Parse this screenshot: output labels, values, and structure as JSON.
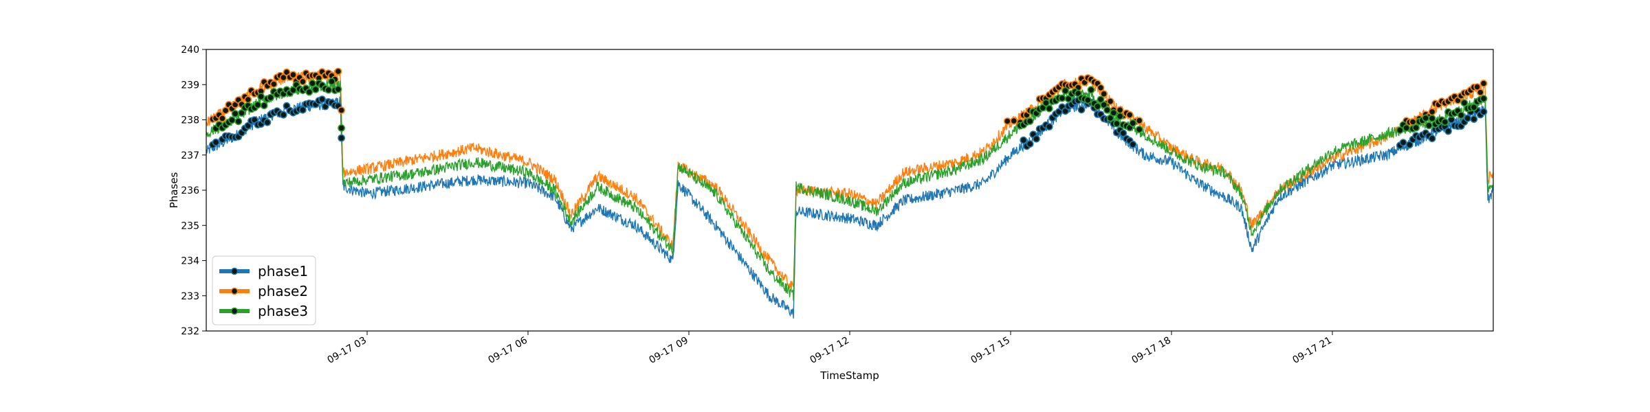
{
  "chart_data": {
    "type": "line",
    "title": "",
    "xlabel": "TimeStamp",
    "ylabel": "Phases",
    "x_range": [
      "09-17 00:00",
      "24:00"
    ],
    "ylim": [
      232,
      240
    ],
    "yticks": [
      232,
      233,
      234,
      235,
      236,
      237,
      238,
      239,
      240
    ],
    "xticks": [
      {
        "hour": 3,
        "label": "09-17 03"
      },
      {
        "hour": 6,
        "label": "09-17 06"
      },
      {
        "hour": 9,
        "label": "09-17 09"
      },
      {
        "hour": 12,
        "label": "09-17 12"
      },
      {
        "hour": 15,
        "label": "09-17 15"
      },
      {
        "hour": 18,
        "label": "09-17 18"
      },
      {
        "hour": 21,
        "label": "09-17 21"
      }
    ],
    "grid": false,
    "legend_position": "lower-left",
    "legend_marker": "filled black circle on line; scatter points drawn where value exceeds series mean",
    "x_unit": "hour",
    "series": [
      {
        "name": "phase1",
        "color": "#1f77b4",
        "points": [
          [
            0.0,
            237.1
          ],
          [
            0.5,
            237.5
          ],
          [
            1.0,
            238.0
          ],
          [
            1.5,
            238.3
          ],
          [
            2.0,
            238.4
          ],
          [
            2.5,
            238.5
          ],
          [
            2.55,
            236.1
          ],
          [
            3.0,
            235.9
          ],
          [
            4.0,
            236.1
          ],
          [
            5.0,
            236.3
          ],
          [
            6.0,
            236.2
          ],
          [
            6.5,
            235.8
          ],
          [
            6.8,
            234.9
          ],
          [
            7.3,
            235.5
          ],
          [
            8.0,
            235.0
          ],
          [
            8.7,
            234.0
          ],
          [
            8.8,
            236.2
          ],
          [
            9.5,
            235.0
          ],
          [
            10.5,
            233.0
          ],
          [
            10.95,
            232.5
          ],
          [
            11.0,
            235.4
          ],
          [
            12.0,
            235.2
          ],
          [
            12.5,
            235.0
          ],
          [
            13.0,
            235.7
          ],
          [
            14.0,
            236.0
          ],
          [
            14.5,
            236.2
          ],
          [
            15.0,
            237.0
          ],
          [
            15.5,
            237.6
          ],
          [
            16.0,
            238.3
          ],
          [
            16.5,
            238.5
          ],
          [
            17.0,
            237.6
          ],
          [
            17.5,
            237.0
          ],
          [
            18.0,
            236.8
          ],
          [
            18.5,
            236.2
          ],
          [
            19.0,
            235.8
          ],
          [
            19.3,
            235.5
          ],
          [
            19.5,
            234.3
          ],
          [
            20.0,
            235.8
          ],
          [
            21.0,
            236.7
          ],
          [
            22.0,
            237.0
          ],
          [
            23.0,
            237.7
          ],
          [
            23.85,
            238.3
          ],
          [
            23.9,
            235.7
          ],
          [
            24.0,
            236.0
          ]
        ]
      },
      {
        "name": "phase2",
        "color": "#ff7f0e",
        "points": [
          [
            0.0,
            237.9
          ],
          [
            0.5,
            238.4
          ],
          [
            1.0,
            238.9
          ],
          [
            1.5,
            239.2
          ],
          [
            2.0,
            239.2
          ],
          [
            2.5,
            239.3
          ],
          [
            2.55,
            236.5
          ],
          [
            3.0,
            236.6
          ],
          [
            4.0,
            236.9
          ],
          [
            5.0,
            237.2
          ],
          [
            6.0,
            236.8
          ],
          [
            6.5,
            236.3
          ],
          [
            6.8,
            235.3
          ],
          [
            7.3,
            236.4
          ],
          [
            8.0,
            235.8
          ],
          [
            8.7,
            234.4
          ],
          [
            8.8,
            236.7
          ],
          [
            9.5,
            236.1
          ],
          [
            10.5,
            234.0
          ],
          [
            10.95,
            233.2
          ],
          [
            11.0,
            236.0
          ],
          [
            12.0,
            235.9
          ],
          [
            12.5,
            235.6
          ],
          [
            13.0,
            236.5
          ],
          [
            14.0,
            236.8
          ],
          [
            14.5,
            237.1
          ],
          [
            15.0,
            237.9
          ],
          [
            15.5,
            238.4
          ],
          [
            16.0,
            239.0
          ],
          [
            16.5,
            239.1
          ],
          [
            17.0,
            238.3
          ],
          [
            17.5,
            237.8
          ],
          [
            18.0,
            237.2
          ],
          [
            18.5,
            236.8
          ],
          [
            19.0,
            236.6
          ],
          [
            19.3,
            236.0
          ],
          [
            19.5,
            235.0
          ],
          [
            20.0,
            236.0
          ],
          [
            21.0,
            236.9
          ],
          [
            22.0,
            237.5
          ],
          [
            23.0,
            238.4
          ],
          [
            23.85,
            238.9
          ],
          [
            23.9,
            236.3
          ],
          [
            24.0,
            236.5
          ]
        ]
      },
      {
        "name": "phase3",
        "color": "#2ca02c",
        "points": [
          [
            0.0,
            237.6
          ],
          [
            0.5,
            238.0
          ],
          [
            1.0,
            238.5
          ],
          [
            1.5,
            238.8
          ],
          [
            2.0,
            238.9
          ],
          [
            2.5,
            239.0
          ],
          [
            2.55,
            236.2
          ],
          [
            3.0,
            236.3
          ],
          [
            4.0,
            236.5
          ],
          [
            5.0,
            236.8
          ],
          [
            6.0,
            236.5
          ],
          [
            6.5,
            236.0
          ],
          [
            6.8,
            235.1
          ],
          [
            7.3,
            236.1
          ],
          [
            8.0,
            235.5
          ],
          [
            8.7,
            234.3
          ],
          [
            8.8,
            236.7
          ],
          [
            9.5,
            235.9
          ],
          [
            10.5,
            233.7
          ],
          [
            10.95,
            233.0
          ],
          [
            11.0,
            236.1
          ],
          [
            12.0,
            235.7
          ],
          [
            12.5,
            235.4
          ],
          [
            13.0,
            236.2
          ],
          [
            14.0,
            236.6
          ],
          [
            14.5,
            236.9
          ],
          [
            15.0,
            237.6
          ],
          [
            15.5,
            238.2
          ],
          [
            16.0,
            238.7
          ],
          [
            16.5,
            238.7
          ],
          [
            17.0,
            238.0
          ],
          [
            17.5,
            237.6
          ],
          [
            18.0,
            237.1
          ],
          [
            18.5,
            236.7
          ],
          [
            19.0,
            236.5
          ],
          [
            19.3,
            235.9
          ],
          [
            19.5,
            234.8
          ],
          [
            20.0,
            236.0
          ],
          [
            21.0,
            237.1
          ],
          [
            22.0,
            237.6
          ],
          [
            23.0,
            238.0
          ],
          [
            23.85,
            238.6
          ],
          [
            23.9,
            236.0
          ],
          [
            24.0,
            236.3
          ]
        ]
      }
    ]
  }
}
